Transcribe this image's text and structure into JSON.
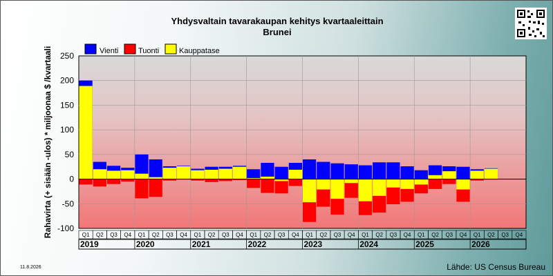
{
  "chart_data": {
    "type": "bar",
    "title": "Yhdysvaltain tavarakaupan kehitys kvartaaleittain",
    "subtitle": "Brunei",
    "ylabel": "Rahavirta (+ sisään -ulos)  * miljoonaa $ /kvartaali",
    "ylim": [
      -100,
      250
    ],
    "yticks": [
      250,
      200,
      150,
      100,
      50,
      0,
      -50,
      -100
    ],
    "grid": true,
    "legend_position": "top-left",
    "colors": {
      "vienti": "#0000ff",
      "tuonti": "#ff0000",
      "kauppatase": "#ffff00"
    },
    "quarter_labels": [
      "Q1",
      "Q2",
      "Q3",
      "Q4"
    ],
    "years": [
      "2019",
      "2020",
      "2021",
      "2022",
      "2023",
      "2024",
      "2025",
      "2026"
    ],
    "series": [
      {
        "name": "Vienti",
        "values": [
          200,
          35,
          27,
          23,
          50,
          40,
          26,
          27,
          21,
          25,
          25,
          27,
          20,
          33,
          25,
          33,
          40,
          35,
          32,
          30,
          28,
          34,
          34,
          26,
          18,
          28,
          26,
          25,
          20,
          22,
          null,
          null
        ]
      },
      {
        "name": "Tuonti",
        "values": [
          -11,
          -15,
          -10,
          -5,
          -39,
          -36,
          -3,
          -1,
          -3,
          -6,
          -4,
          -2,
          -18,
          -28,
          -29,
          -14,
          -87,
          -56,
          -72,
          -38,
          -73,
          -68,
          -51,
          -46,
          -29,
          -20,
          -10,
          -46,
          -3,
          -1,
          null,
          null
        ]
      },
      {
        "name": "Kauppatase",
        "values": [
          189,
          20,
          17,
          18,
          11,
          4,
          23,
          26,
          18,
          19,
          21,
          25,
          2,
          5,
          -4,
          19,
          -47,
          -21,
          -40,
          -8,
          -45,
          -34,
          -17,
          -20,
          -11,
          8,
          16,
          -21,
          17,
          21,
          null,
          null
        ]
      }
    ]
  },
  "legend": {
    "items": [
      "Vienti",
      "Tuonti",
      "Kauppatase"
    ]
  },
  "footer": {
    "date": "11.8.2026",
    "source": "Lähde: US Census Bureau"
  }
}
